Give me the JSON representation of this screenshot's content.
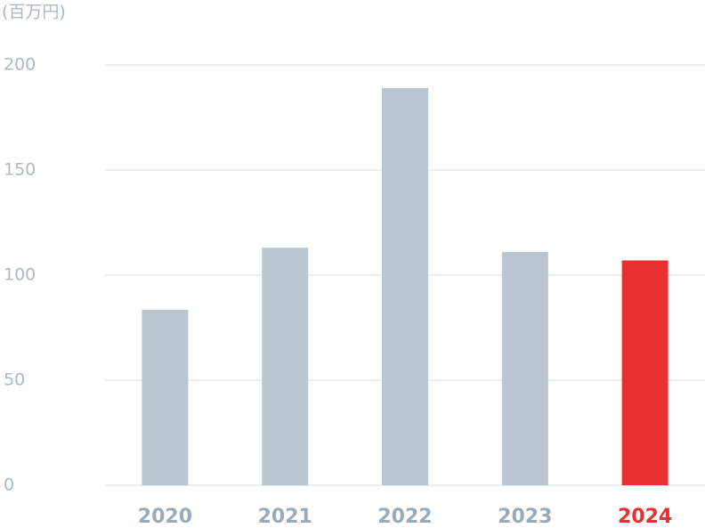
{
  "chart_data": {
    "type": "bar",
    "y_unit_label": "(百万円)",
    "categories": [
      "2020",
      "2021",
      "2022",
      "2023",
      "2024"
    ],
    "values": [
      83.5,
      113,
      189,
      111,
      107
    ],
    "colors": [
      "#b9c6cf",
      "#b9c6cf",
      "#b9c6cf",
      "#b9c6cf",
      "#e8312f"
    ],
    "x_label_colors": [
      "#9aabb8",
      "#9aabb8",
      "#9aabb8",
      "#9aabb8",
      "#e8312f"
    ],
    "ylim": [
      0,
      200
    ],
    "yticks": [
      0,
      50,
      100,
      150,
      200
    ],
    "grid": true
  }
}
